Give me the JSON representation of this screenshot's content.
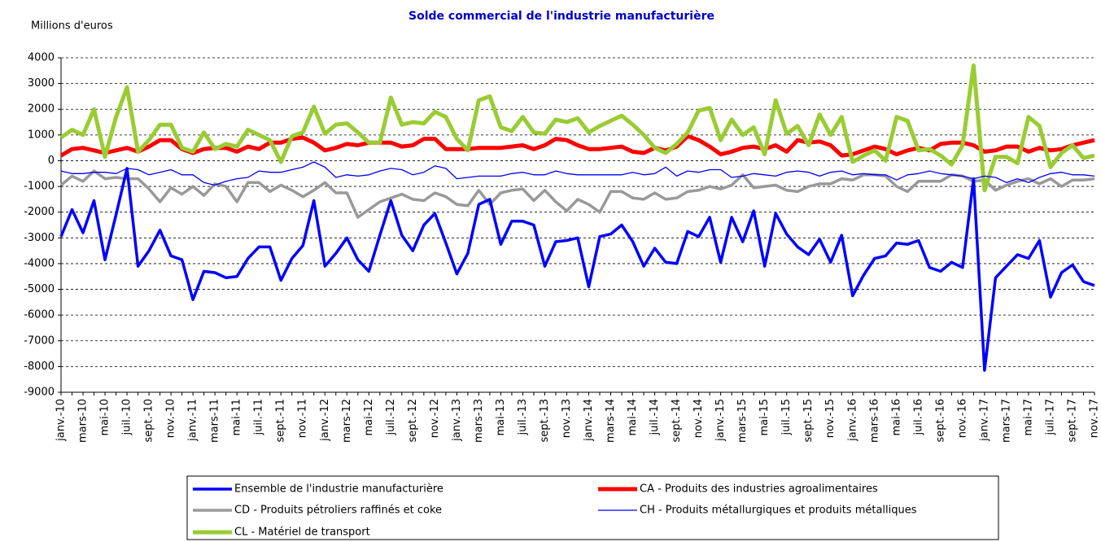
{
  "chart_data": {
    "type": "line",
    "title": "Solde commercial de l'industrie manufacturière",
    "y_label": "Millions d'euros",
    "ylim": [
      -9000,
      4000
    ],
    "yticks": [
      -9000,
      -8000,
      -7000,
      -6000,
      -5000,
      -4000,
      -3000,
      -2000,
      -1000,
      0,
      1000,
      2000,
      3000,
      4000
    ],
    "grid": true,
    "legend": "bottom",
    "categories": [
      "janv.-10",
      null,
      "mars-10",
      null,
      "mai-10",
      null,
      "juil.-10",
      null,
      "sept.-10",
      null,
      "nov.-10",
      null,
      "janv.-11",
      null,
      "mars-11",
      null,
      "mai-11",
      null,
      "juil.-11",
      null,
      "sept.-11",
      null,
      "nov.-11",
      null,
      "janv.-12",
      null,
      "mars-12",
      null,
      "mai-12",
      null,
      "juil.-12",
      null,
      "sept.-12",
      null,
      "nov.-12",
      null,
      "janv.-13",
      null,
      "mars-13",
      null,
      "mai-13",
      null,
      "juil.-13",
      null,
      "sept.-13",
      null,
      "nov.-13",
      null,
      "janv.-14",
      null,
      "mars-14",
      null,
      "mai-14",
      null,
      "juil.-14",
      null,
      "sept.-14",
      null,
      "nov.-14",
      null,
      "janv.-15",
      null,
      "mars-15",
      null,
      "mai-15",
      null,
      "juil.-15",
      null,
      "sept.-15",
      null,
      "nov.-15",
      null,
      "janv.-16",
      null,
      "mars-16",
      null,
      "mai-16",
      null,
      "juil.-16",
      null,
      "sept.-16",
      null,
      "nov.-16",
      null,
      "janv.-17",
      null,
      "mars-17",
      null,
      "mai-17",
      null,
      "juil.-17",
      null,
      "sept.-17",
      null,
      "nov.-17"
    ],
    "series": [
      {
        "name": "Ensemble de l'industrie manufacturière",
        "color": "#0000ff",
        "values": [
          -2950,
          -1900,
          -2800,
          -1550,
          -3850,
          -2100,
          -300,
          -4100,
          -3500,
          -2700,
          -3700,
          -3850,
          -5400,
          -4300,
          -4350,
          -4550,
          -4500,
          -3800,
          -3350,
          -3350,
          -4650,
          -3800,
          -3300,
          -1550,
          -4100,
          -3600,
          -3000,
          -3850,
          -4300,
          -2900,
          -1550,
          -2900,
          -3500,
          -2500,
          -2050,
          -3200,
          -4400,
          -3600,
          -1700,
          -1500,
          -3250,
          -2350,
          -2350,
          -2500,
          -4100,
          -3150,
          -3100,
          -3000,
          -4900,
          -2950,
          -2850,
          -2500,
          -3150,
          -4100,
          -3400,
          -3950,
          -4000,
          -2750,
          -2950,
          -2200,
          -3950,
          -2200,
          -3150,
          -1950,
          -4100,
          -2050,
          -2850,
          -3350,
          -3650,
          -3050,
          -3950,
          -2900,
          -5250,
          -4450,
          -3800,
          -3700,
          -3200,
          -3250,
          -3100,
          -4150,
          -4300,
          -3950,
          -4150,
          -700,
          -8150,
          -4550,
          -4100,
          -3650,
          -3800,
          -3100,
          -5300,
          -4350,
          -4050,
          -4700,
          -4850
        ]
      },
      {
        "name": "CA - Produits des industries agroalimentaires",
        "color": "#ff0000",
        "values": [
          200,
          450,
          500,
          400,
          300,
          400,
          500,
          350,
          550,
          800,
          800,
          450,
          300,
          450,
          500,
          500,
          350,
          550,
          450,
          700,
          700,
          850,
          900,
          700,
          400,
          500,
          650,
          600,
          700,
          700,
          700,
          550,
          600,
          850,
          850,
          450,
          450,
          450,
          500,
          500,
          500,
          550,
          600,
          450,
          600,
          850,
          800,
          600,
          450,
          450,
          500,
          550,
          350,
          300,
          500,
          400,
          550,
          950,
          800,
          550,
          250,
          350,
          500,
          550,
          450,
          600,
          350,
          800,
          700,
          750,
          600,
          200,
          250,
          400,
          550,
          450,
          250,
          400,
          500,
          400,
          650,
          700,
          700,
          600,
          350,
          400,
          550,
          550,
          350,
          500,
          400,
          450,
          600,
          700,
          800
        ]
      },
      {
        "name": "CD  - Produits pétroliers raffinés et coke",
        "color": "#999999",
        "values": [
          -950,
          -600,
          -800,
          -400,
          -700,
          -650,
          -700,
          -700,
          -1100,
          -1600,
          -1050,
          -1300,
          -1000,
          -1350,
          -900,
          -1000,
          -1600,
          -850,
          -850,
          -1200,
          -950,
          -1150,
          -1400,
          -1150,
          -850,
          -1250,
          -1250,
          -2200,
          -1900,
          -1600,
          -1450,
          -1300,
          -1500,
          -1550,
          -1250,
          -1400,
          -1700,
          -1750,
          -1150,
          -1700,
          -1250,
          -1150,
          -1100,
          -1550,
          -1150,
          -1600,
          -1950,
          -1500,
          -1700,
          -2000,
          -1200,
          -1200,
          -1450,
          -1500,
          -1250,
          -1500,
          -1450,
          -1200,
          -1150,
          -1000,
          -1100,
          -950,
          -550,
          -1050,
          -1000,
          -950,
          -1150,
          -1200,
          -1000,
          -900,
          -900,
          -700,
          -750,
          -550,
          -550,
          -600,
          -1000,
          -1200,
          -800,
          -800,
          -800,
          -550,
          -600,
          -800,
          -750,
          -1150,
          -950,
          -800,
          -700,
          -900,
          -700,
          -1000,
          -750,
          -750,
          -700
        ]
      },
      {
        "name": "CH - Produits métallurgiques et produits métalliques",
        "color": "#0000ff",
        "values": [
          -400,
          -500,
          -500,
          -450,
          -450,
          -500,
          -300,
          -350,
          -550,
          -450,
          -350,
          -550,
          -550,
          -850,
          -950,
          -800,
          -700,
          -650,
          -400,
          -450,
          -450,
          -350,
          -250,
          -50,
          -250,
          -650,
          -550,
          -600,
          -550,
          -400,
          -300,
          -350,
          -550,
          -450,
          -200,
          -300,
          -700,
          -650,
          -600,
          -600,
          -600,
          -500,
          -450,
          -550,
          -550,
          -400,
          -500,
          -550,
          -550,
          -550,
          -550,
          -550,
          -450,
          -550,
          -500,
          -250,
          -600,
          -400,
          -450,
          -350,
          -350,
          -650,
          -600,
          -500,
          -550,
          -600,
          -450,
          -400,
          -450,
          -600,
          -450,
          -400,
          -550,
          -500,
          -550,
          -550,
          -750,
          -550,
          -500,
          -400,
          -500,
          -550,
          -600,
          -700,
          -600,
          -650,
          -850,
          -700,
          -850,
          -650,
          -500,
          -450,
          -550,
          -550,
          -600
        ]
      },
      {
        "name": "CL - Matériel de transport",
        "color": "#99cc33",
        "values": [
          900,
          1200,
          1000,
          2000,
          150,
          1700,
          2850,
          350,
          800,
          1400,
          1400,
          500,
          350,
          1100,
          450,
          650,
          550,
          1200,
          1000,
          800,
          -50,
          950,
          1100,
          2100,
          1050,
          1400,
          1450,
          1100,
          700,
          700,
          2450,
          1400,
          1500,
          1450,
          1900,
          1700,
          850,
          400,
          2350,
          2500,
          1300,
          1150,
          1700,
          1100,
          1050,
          1600,
          1500,
          1650,
          1100,
          1350,
          1550,
          1750,
          1400,
          1000,
          500,
          300,
          650,
          1100,
          1950,
          2050,
          800,
          1600,
          1000,
          1300,
          250,
          2350,
          1050,
          1350,
          600,
          1800,
          1000,
          1700,
          -50,
          200,
          400,
          0,
          1700,
          1550,
          400,
          450,
          200,
          -150,
          600,
          3700,
          -1150,
          150,
          150,
          -100,
          1700,
          1350,
          -250,
          300,
          600,
          100,
          200
        ]
      }
    ]
  }
}
